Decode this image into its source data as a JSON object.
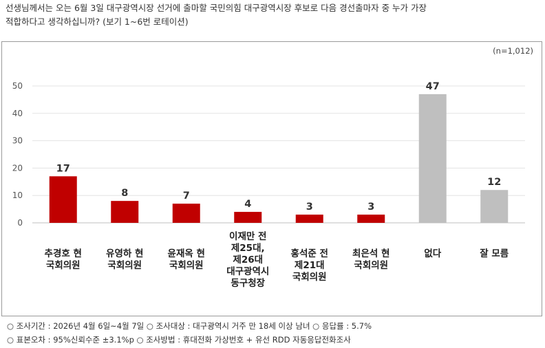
{
  "question": {
    "line1": "선생님께서는 오는 6월 3일 대구광역시장 선거에 출마할 국민의힘 대구광역시장 후보로 다음 경선출마자 중 누가 가장",
    "line2": "적합하다고 생각하십니까? (보기 1~6번 로테이션)"
  },
  "sample_size": "(n=1,012)",
  "colors": {
    "primary": "#c00000",
    "neutral": "#bfbfbf"
  },
  "chart_data": {
    "type": "bar",
    "categories": [
      [
        "추경호 현",
        "국회의원"
      ],
      [
        "유영하 현",
        "국회의원"
      ],
      [
        "윤재옥 현",
        "국회의원"
      ],
      [
        "이재만 전",
        "제25대,",
        "제26대",
        "대구광역시",
        "동구청장"
      ],
      [
        "홍석준 전",
        "제21대",
        "국회의원"
      ],
      [
        "최은석 현",
        "국회의원"
      ],
      [
        "없다"
      ],
      [
        "잘 모름"
      ]
    ],
    "values": [
      17,
      8,
      7,
      4,
      3,
      3,
      47,
      12
    ],
    "bar_colors": [
      "primary",
      "primary",
      "primary",
      "primary",
      "primary",
      "primary",
      "neutral",
      "neutral"
    ],
    "ylim": [
      0,
      50
    ],
    "yticks": [
      0,
      10,
      20,
      30,
      40,
      50
    ],
    "grid": true
  },
  "footer": {
    "line1": "○ 조사기간 : 2026년 4월 6일~4월 7일 ○ 조사대상 : 대구광역시 거주 만 18세 이상 남녀 ○ 응답률 : 5.7%",
    "line2": "○ 표본오차 : 95%신뢰수준 ±3.1%p ○ 조사방법 : 휴대전화 가상번호 + 유선 RDD 자동응답전화조사"
  }
}
